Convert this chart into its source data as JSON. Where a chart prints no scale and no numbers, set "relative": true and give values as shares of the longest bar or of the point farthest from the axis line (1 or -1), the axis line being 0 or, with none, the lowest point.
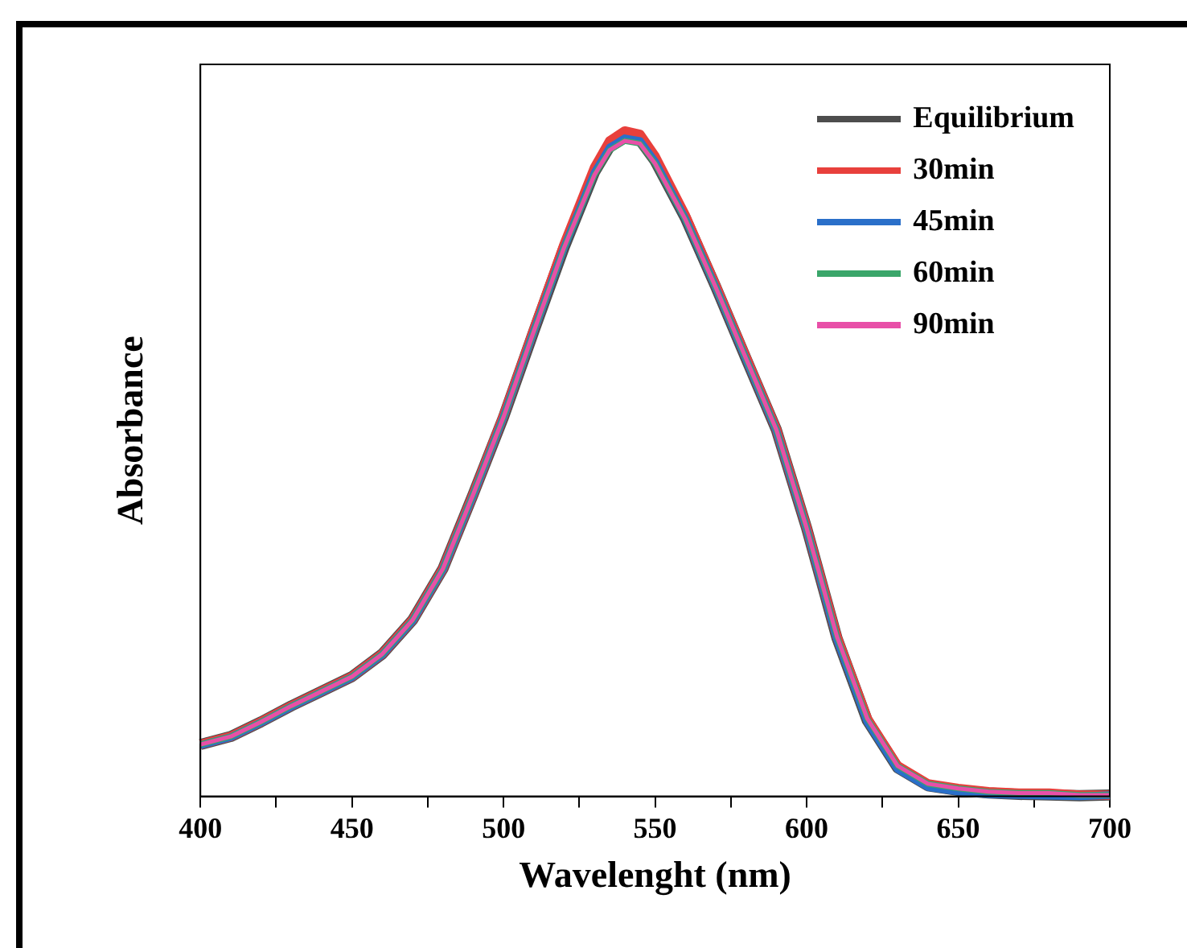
{
  "chart_data": {
    "type": "line",
    "xlabel": "Wavelenght (nm)",
    "ylabel": "Absorbance",
    "relative": true,
    "xlim": [
      400,
      700
    ],
    "xticks": [
      400,
      {
        "value": 425,
        "label": null
      },
      450,
      {
        "value": 475,
        "label": null
      },
      500,
      {
        "value": 525,
        "label": null
      },
      550,
      {
        "value": 575,
        "label": null
      },
      600,
      {
        "value": 625,
        "label": null
      },
      650,
      {
        "value": 675,
        "label": null
      },
      700
    ],
    "grid": false,
    "legend": "top right",
    "marker": "none",
    "line_style": "solid",
    "x": [
      400,
      410,
      420,
      430,
      440,
      450,
      460,
      470,
      480,
      490,
      500,
      510,
      520,
      530,
      535,
      540,
      545,
      550,
      560,
      570,
      580,
      590,
      600,
      610,
      620,
      630,
      640,
      650,
      660,
      670,
      680,
      690,
      700
    ],
    "series": [
      {
        "name": "Equilibrium",
        "color": "#4d4d4d",
        "values": [
          0.078,
          0.09,
          0.112,
          0.136,
          0.158,
          0.18,
          0.214,
          0.265,
          0.342,
          0.454,
          0.57,
          0.699,
          0.825,
          0.938,
          0.976,
          0.99,
          0.986,
          0.955,
          0.869,
          0.766,
          0.658,
          0.551,
          0.403,
          0.238,
          0.114,
          0.043,
          0.016,
          0.009,
          0.005,
          0.003,
          0.002,
          0.001,
          0.002
        ]
      },
      {
        "name": "30min",
        "color": "#e8403c",
        "values": [
          0.078,
          0.09,
          0.112,
          0.136,
          0.158,
          0.18,
          0.214,
          0.265,
          0.342,
          0.454,
          0.572,
          0.702,
          0.83,
          0.945,
          0.985,
          1.0,
          0.995,
          0.962,
          0.873,
          0.768,
          0.66,
          0.552,
          0.404,
          0.24,
          0.117,
          0.046,
          0.019,
          0.012,
          0.007,
          0.005,
          0.005,
          0.002,
          0.002
        ]
      },
      {
        "name": "45min",
        "color": "#2a6fc9",
        "values": [
          0.077,
          0.089,
          0.111,
          0.135,
          0.157,
          0.179,
          0.213,
          0.264,
          0.341,
          0.453,
          0.57,
          0.699,
          0.825,
          0.937,
          0.975,
          0.989,
          0.985,
          0.954,
          0.868,
          0.765,
          0.657,
          0.55,
          0.402,
          0.236,
          0.112,
          0.041,
          0.014,
          0.007,
          0.003,
          0.002,
          0.001,
          0.0,
          0.002
        ]
      },
      {
        "name": "60min",
        "color": "#3aa66a",
        "values": [
          0.078,
          0.09,
          0.112,
          0.136,
          0.158,
          0.18,
          0.214,
          0.265,
          0.342,
          0.454,
          0.57,
          0.699,
          0.825,
          0.934,
          0.971,
          0.985,
          0.981,
          0.951,
          0.867,
          0.765,
          0.658,
          0.551,
          0.403,
          0.24,
          0.117,
          0.046,
          0.019,
          0.012,
          0.007,
          0.005,
          0.005,
          0.002,
          0.002
        ]
      },
      {
        "name": "90min",
        "color": "#e84fa8",
        "values": [
          0.078,
          0.09,
          0.112,
          0.136,
          0.158,
          0.18,
          0.214,
          0.265,
          0.342,
          0.454,
          0.57,
          0.699,
          0.825,
          0.934,
          0.971,
          0.985,
          0.981,
          0.951,
          0.867,
          0.765,
          0.658,
          0.551,
          0.403,
          0.24,
          0.117,
          0.046,
          0.019,
          0.012,
          0.007,
          0.005,
          0.005,
          0.002,
          0.002
        ]
      }
    ]
  }
}
